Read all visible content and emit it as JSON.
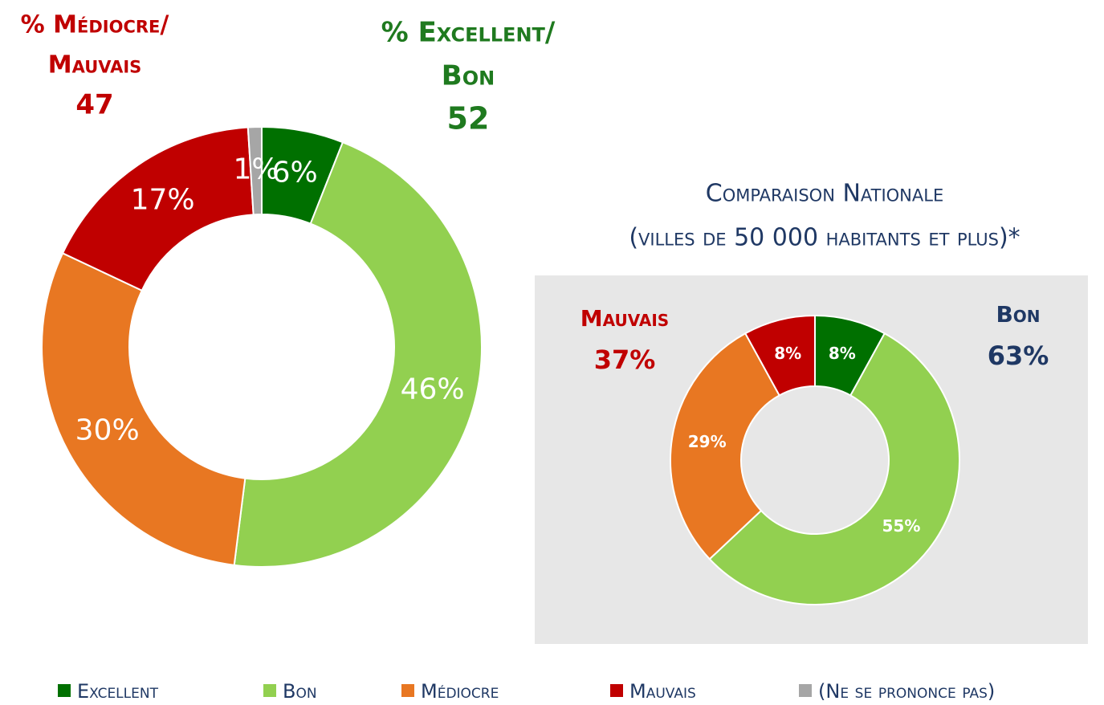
{
  "chart_data": [
    {
      "type": "donut",
      "categories": [
        "Excellent",
        "Bon",
        "Médiocre",
        "Mauvais",
        "(Ne se prononce pas)"
      ],
      "values": [
        6,
        46,
        30,
        17,
        1
      ],
      "value_labels": [
        "6%",
        "46%",
        "30%",
        "17%",
        "1%"
      ],
      "colors": [
        "#007000",
        "#92d050",
        "#e87722",
        "#c00000",
        "#a6a6a6"
      ],
      "annotations": [
        {
          "lines": [
            "% Médiocre/",
            "Mauvais"
          ],
          "value": 47,
          "color": "#c00000"
        },
        {
          "lines": [
            "% Excellent/",
            "Bon"
          ],
          "value": 52,
          "color": "#1f7a1f"
        }
      ]
    },
    {
      "type": "donut",
      "title": "Comparaison Nationale",
      "subtitle": "(villes de 50 000 habitants et plus)*",
      "categories": [
        "Excellent",
        "Bon",
        "Médiocre",
        "Mauvais"
      ],
      "values": [
        8,
        55,
        29,
        8
      ],
      "value_labels": [
        "8%",
        "55%",
        "29%",
        "8%"
      ],
      "colors": [
        "#007000",
        "#92d050",
        "#e87722",
        "#c00000"
      ],
      "annotations": [
        {
          "lines": [
            "Mauvais"
          ],
          "value": "37%",
          "color": "#c00000"
        },
        {
          "lines": [
            "Bon"
          ],
          "value": "63%",
          "color": "#1f3864"
        }
      ]
    }
  ]
}
